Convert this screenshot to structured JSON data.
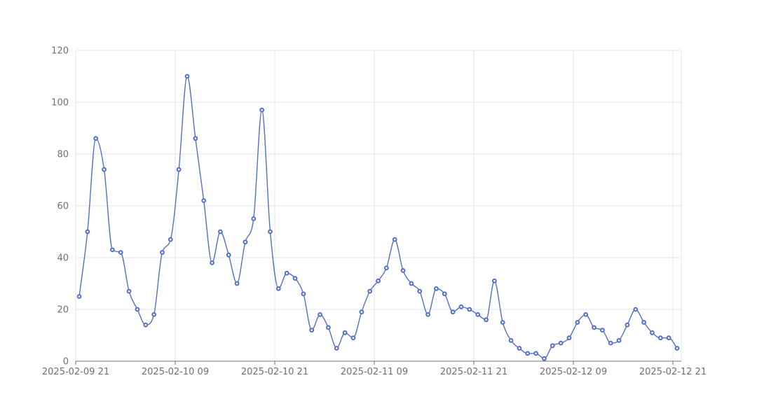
{
  "chart_data": {
    "type": "line",
    "title": "",
    "xlabel": "",
    "ylabel": "",
    "ylim": [
      0,
      120
    ],
    "yticks": [
      0,
      20,
      40,
      60,
      80,
      100,
      120
    ],
    "xtick_labels": [
      "2025-02-09 21",
      "2025-02-10 09",
      "2025-02-10 21",
      "2025-02-11 09",
      "2025-02-11 21",
      "2025-02-12 09",
      "2025-02-12 21"
    ],
    "grid": true,
    "smooth": true,
    "color": "#5470c6",
    "series": [
      {
        "values": [
          25,
          50,
          86,
          74,
          43,
          42,
          27,
          20,
          14,
          18,
          42,
          47,
          74,
          110,
          86,
          62,
          38,
          50,
          41,
          30,
          46,
          55,
          97,
          50,
          28,
          34,
          32,
          26,
          12,
          18,
          13,
          5,
          11,
          9,
          19,
          27,
          31,
          36,
          47,
          35,
          30,
          27,
          18,
          28,
          26,
          19,
          21,
          20,
          18,
          16,
          31,
          15,
          8,
          5,
          3,
          3,
          1,
          6,
          7,
          9,
          15,
          18,
          13,
          12,
          7,
          8,
          14,
          20,
          15,
          11,
          9,
          9,
          5
        ]
      }
    ]
  }
}
